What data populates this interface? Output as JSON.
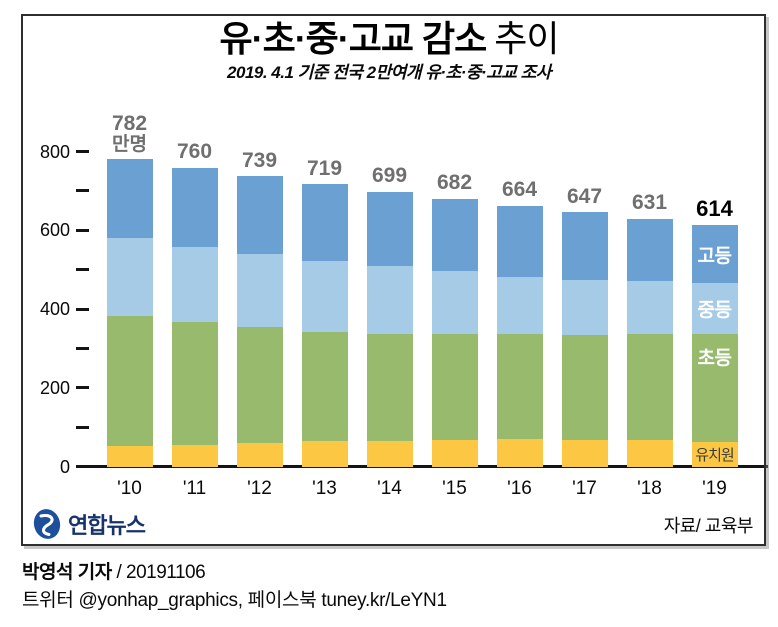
{
  "header": {
    "title_strong": "유·초·중·고교 감소",
    "title_light": "추이",
    "subtitle": "2019. 4.1 기준 전국 2만여개 유·초·중·고교 조사"
  },
  "footer": {
    "logo_text": "연합뉴스",
    "source": "자료/ 교육부"
  },
  "credits": {
    "line1_bold": "박영석 기자",
    "line1_rest": "/ 20191106",
    "line2": "트위터 @yonhap_graphics, 페이스북 tuney.kr/LeYN1"
  },
  "colors": {
    "kindergarten": "#fcc843",
    "elementary": "#97ba6c",
    "middle": "#a6cbe6",
    "high": "#6aa1d2",
    "value_label_gray": "#6f6f6f",
    "axis_black": "#141414",
    "logo_blue": "#1d4f9c",
    "logo_navy": "#16336e"
  },
  "chart_data": {
    "type": "bar",
    "stacked": true,
    "title": "유·초·중·고교 감소 추이",
    "subtitle": "2019. 4.1 기준 전국 2만여개 유·초·중·고교 조사",
    "unit": "만명",
    "categories": [
      "'10",
      "'11",
      "'12",
      "'13",
      "'14",
      "'15",
      "'16",
      "'17",
      "'18",
      "'19"
    ],
    "totals": [
      782,
      760,
      739,
      719,
      699,
      682,
      664,
      647,
      631,
      614
    ],
    "series": [
      {
        "name": "유치원",
        "color": "#fcc843",
        "label_dark": true,
        "values": [
          54,
          56,
          61,
          66,
          65,
          68,
          70,
          69,
          68,
          63
        ]
      },
      {
        "name": "초등",
        "color": "#97ba6c",
        "label_dark": false,
        "values": [
          330,
          313,
          295,
          278,
          273,
          271,
          267,
          267,
          271,
          275
        ]
      },
      {
        "name": "중등",
        "color": "#a6cbe6",
        "label_dark": false,
        "values": [
          197,
          191,
          185,
          180,
          172,
          159,
          146,
          138,
          133,
          129
        ]
      },
      {
        "name": "고등",
        "color": "#6aa1d2",
        "label_dark": false,
        "values": [
          201,
          200,
          198,
          195,
          189,
          184,
          181,
          173,
          159,
          147
        ]
      }
    ],
    "ylim": [
      0,
      800
    ],
    "yticks_major": [
      0,
      200,
      400,
      600,
      800
    ],
    "yticks_minor": [
      100,
      300,
      500,
      700
    ],
    "grid": false,
    "legend_position": "labels drawn on last bar",
    "segment_labels_on_last_bar": [
      "유치원",
      "초등",
      "중등",
      "고등"
    ]
  }
}
